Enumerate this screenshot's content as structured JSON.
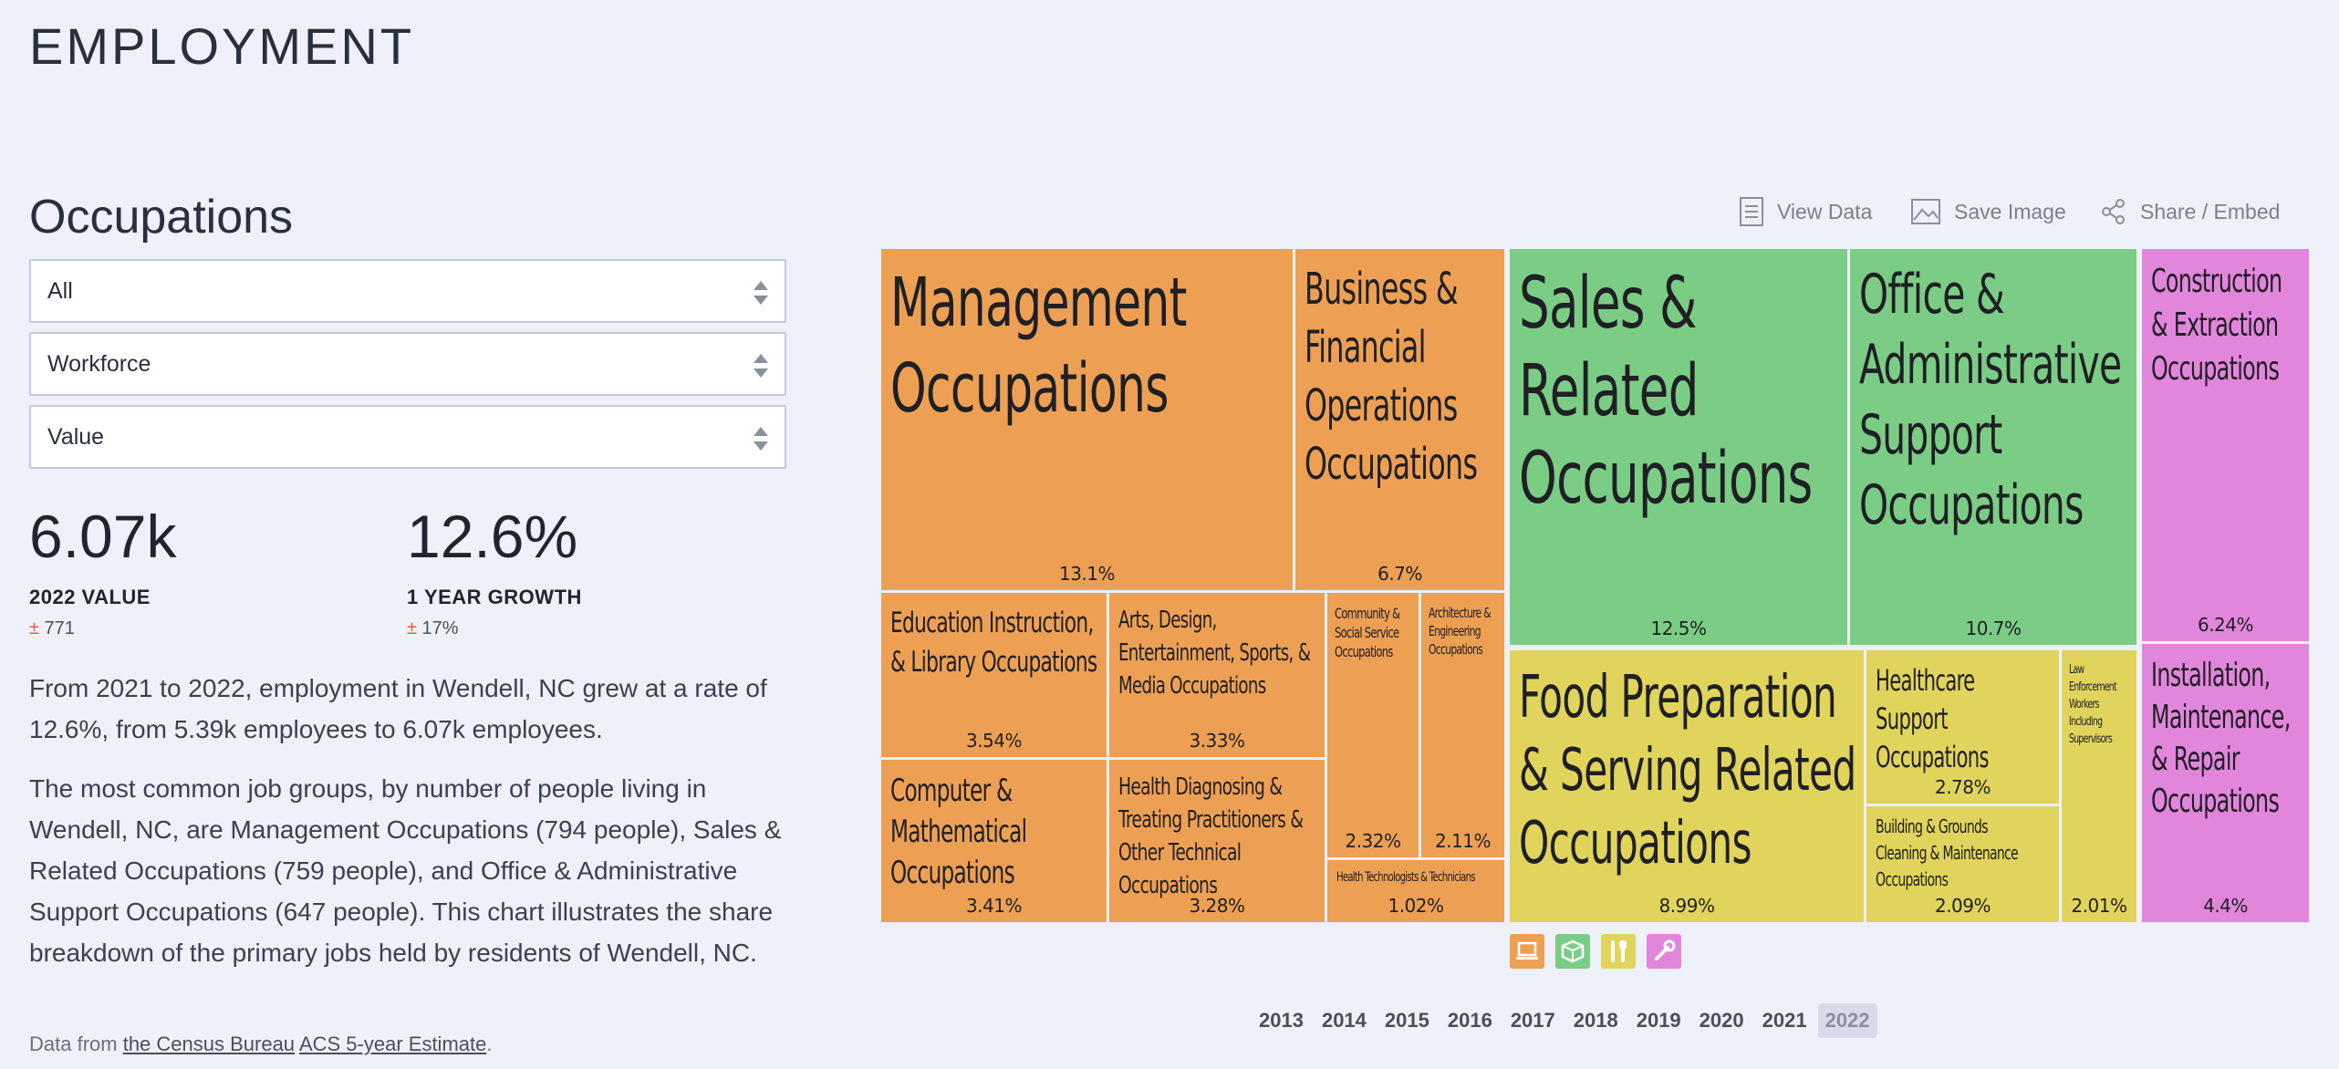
{
  "page": {
    "section_title": "EMPLOYMENT",
    "subtitle": "Occupations"
  },
  "filters": [
    {
      "value": "All"
    },
    {
      "value": "Workforce"
    },
    {
      "value": "Value"
    }
  ],
  "stats": [
    {
      "value": "6.07k",
      "label": "2022 VALUE",
      "moe_sign": "±",
      "moe": "771"
    },
    {
      "value": "12.6%",
      "label": "1 YEAR GROWTH",
      "moe_sign": "±",
      "moe": "17%"
    }
  ],
  "paragraphs": [
    "From 2021 to 2022, employment in Wendell, NC grew at a rate of 12.6%, from 5.39k employees to 6.07k employees.",
    "The most common job groups, by number of people living in Wendell, NC, are Management Occupations (794 people), Sales & Related Occupations (759 people), and Office & Administrative Support Occupations (647 people). This chart illustrates the share breakdown of the primary jobs held by residents of Wendell, NC."
  ],
  "source": {
    "prefix": "Data from ",
    "link1": "the Census Bureau",
    "link2": "ACS 5-year Estimate",
    "suffix": "."
  },
  "toolbar": {
    "view_data": "View Data",
    "save_image": "Save Image",
    "share": "Share / Embed"
  },
  "chart_data": {
    "type": "treemap",
    "groups": [
      {
        "name": "orange",
        "color": "#eda054",
        "icon": "computer-icon"
      },
      {
        "name": "green",
        "color": "#7bcd86",
        "icon": "box-icon"
      },
      {
        "name": "yellow",
        "color": "#e0d45c",
        "icon": "utensils-icon"
      },
      {
        "name": "pink",
        "color": "#e286dc",
        "icon": "wrench-icon"
      }
    ],
    "tiles": [
      {
        "label": "Management Occupations",
        "share": "13.1%"
      },
      {
        "label": "Business & Financial Operations Occupations",
        "share": "6.7%"
      },
      {
        "label": "Education Instruction, & Library Occupations",
        "share": "3.54%"
      },
      {
        "label": "Arts, Design, Entertainment, Sports, & Media Occupations",
        "share": "3.33%"
      },
      {
        "label": "Community & Social Service Occupations",
        "share": "2.32%"
      },
      {
        "label": "Architecture & Engineering Occupations",
        "share": "2.11%"
      },
      {
        "label": "Computer & Mathematical Occupations",
        "share": "3.41%"
      },
      {
        "label": "Health Diagnosing & Treating Practitioners & Other Technical Occupations",
        "share": "3.28%"
      },
      {
        "label": "Health Technologists & Technicians",
        "share": "1.02%"
      },
      {
        "label": "Sales & Related Occupations",
        "share": "12.5%"
      },
      {
        "label": "Office & Administrative Support Occupations",
        "share": "10.7%"
      },
      {
        "label": "Construction & Extraction Occupations",
        "share": "6.24%"
      },
      {
        "label": "Food Preparation & Serving Related Occupations",
        "share": "8.99%"
      },
      {
        "label": "Healthcare Support Occupations",
        "share": "2.78%"
      },
      {
        "label": "Building & Grounds Cleaning & Maintenance Occupations",
        "share": "2.09%"
      },
      {
        "label": "Law Enforcement Workers Including Supervisors",
        "share": "2.01%"
      },
      {
        "label": "Installation, Maintenance, & Repair Occupations",
        "share": "4.4%"
      }
    ]
  },
  "years": [
    "2013",
    "2014",
    "2015",
    "2016",
    "2017",
    "2018",
    "2019",
    "2020",
    "2021",
    "2022"
  ],
  "selected_year": "2022"
}
